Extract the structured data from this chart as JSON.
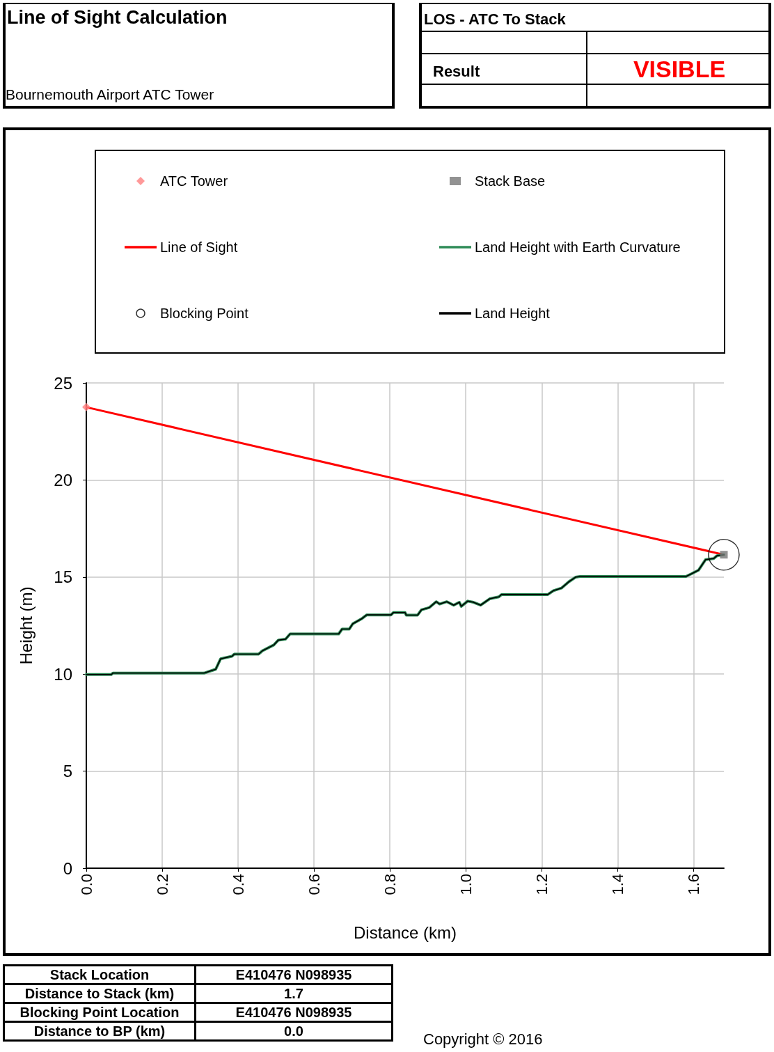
{
  "chart_data": {
    "type": "line",
    "title": "Line of Sight Calculation",
    "subtitle": "Bournemouth Airport ATC Tower",
    "xlabel": "Distance (km)",
    "ylabel": "Height (m)",
    "xlim": [
      0,
      1.68
    ],
    "xticks": [
      {
        "value": 0,
        "label": "0.0"
      },
      {
        "value": 0.2,
        "label": "0.2"
      },
      {
        "value": 0.4,
        "label": "0.4"
      },
      {
        "value": 0.6,
        "label": "0.6"
      },
      {
        "value": 0.8,
        "label": "0.8"
      },
      {
        "value": 1.0,
        "label": "1.0"
      },
      {
        "value": 1.2,
        "label": "1.2"
      },
      {
        "value": 1.4,
        "label": "1.4"
      },
      {
        "value": 1.6,
        "label": "1.6"
      }
    ],
    "ylim": [
      0,
      25
    ],
    "yticks": [
      0,
      5,
      10,
      15,
      20,
      25
    ],
    "grid": true,
    "legend": "top",
    "line_style": "solid",
    "series": [
      {
        "name": "ATC Tower",
        "type": "scatter",
        "marker": "diamond",
        "color": "#ff8080",
        "x": [
          0
        ],
        "values": [
          23.75
        ]
      },
      {
        "name": "Stack Base",
        "type": "scatter",
        "marker": "square",
        "color": "#777777",
        "x": [
          1.68
        ],
        "values": [
          16.15
        ]
      },
      {
        "name": "Line of Sight",
        "marker": "none",
        "color": "#ff0000",
        "x": [
          0,
          1.68
        ],
        "values": [
          23.75,
          16.15
        ]
      },
      {
        "name": "Land Height with Earth Curvature",
        "marker": "none",
        "color": "#2e8b57",
        "x": [
          0,
          0.066,
          0.07,
          0.31,
          0.341,
          0.354,
          0.384,
          0.39,
          0.454,
          0.464,
          0.494,
          0.506,
          0.525,
          0.537,
          0.665,
          0.674,
          0.693,
          0.702,
          0.727,
          0.739,
          0.803,
          0.809,
          0.84,
          0.843,
          0.873,
          0.883,
          0.904,
          0.922,
          0.931,
          0.95,
          0.968,
          0.983,
          0.988,
          1.005,
          1.02,
          1.039,
          1.063,
          1.087,
          1.094,
          1.216,
          1.231,
          1.252,
          1.271,
          1.289,
          1.301,
          1.58,
          1.595,
          1.613,
          1.632,
          1.653,
          1.662,
          1.68
        ],
        "values": [
          9.98,
          9.98,
          10.05,
          10.05,
          10.25,
          10.79,
          10.92,
          11.03,
          11.03,
          11.2,
          11.5,
          11.75,
          11.8,
          12.07,
          12.07,
          12.32,
          12.32,
          12.59,
          12.87,
          13.05,
          13.05,
          13.17,
          13.17,
          13.04,
          13.04,
          13.31,
          13.43,
          13.73,
          13.61,
          13.73,
          13.55,
          13.7,
          13.49,
          13.76,
          13.7,
          13.55,
          13.88,
          13.98,
          14.1,
          14.1,
          14.3,
          14.43,
          14.75,
          14.99,
          15.03,
          15.03,
          15.17,
          15.35,
          15.9,
          15.95,
          16.1,
          16.15
        ]
      },
      {
        "name": "Blocking Point",
        "type": "scatter",
        "marker": "circle",
        "color": "#000000",
        "x": [
          1.68
        ],
        "values": [
          16.15
        ]
      },
      {
        "name": "Land Height",
        "marker": "none",
        "color": "#000000",
        "x": [
          0,
          0.066,
          0.07,
          0.31,
          0.341,
          0.354,
          0.384,
          0.39,
          0.454,
          0.464,
          0.494,
          0.506,
          0.525,
          0.537,
          0.665,
          0.674,
          0.693,
          0.702,
          0.727,
          0.739,
          0.803,
          0.809,
          0.84,
          0.843,
          0.873,
          0.883,
          0.904,
          0.922,
          0.931,
          0.95,
          0.968,
          0.983,
          0.988,
          1.005,
          1.02,
          1.039,
          1.063,
          1.087,
          1.094,
          1.216,
          1.231,
          1.252,
          1.271,
          1.289,
          1.301,
          1.58,
          1.595,
          1.613,
          1.632,
          1.653,
          1.662,
          1.68
        ],
        "values": [
          9.98,
          9.98,
          10.05,
          10.05,
          10.25,
          10.79,
          10.92,
          11.03,
          11.03,
          11.2,
          11.5,
          11.75,
          11.8,
          12.07,
          12.07,
          12.32,
          12.32,
          12.59,
          12.87,
          13.05,
          13.05,
          13.17,
          13.17,
          13.04,
          13.04,
          13.31,
          13.43,
          13.73,
          13.61,
          13.73,
          13.55,
          13.7,
          13.49,
          13.76,
          13.7,
          13.55,
          13.88,
          13.98,
          14.1,
          14.1,
          14.3,
          14.43,
          14.75,
          14.99,
          15.03,
          15.03,
          15.17,
          15.35,
          15.9,
          15.95,
          16.1,
          16.15
        ]
      }
    ],
    "annotations": [
      "LOS - ATC To Stack",
      "Result",
      "VISIBLE",
      "Stack Location",
      "E410476 N098935",
      "Distance to Stack (km)",
      "1.7",
      "Blocking Point Location",
      "E410476 N098935",
      "Distance to BP (km)",
      "0.0",
      "Copyright © 2016"
    ]
  }
}
